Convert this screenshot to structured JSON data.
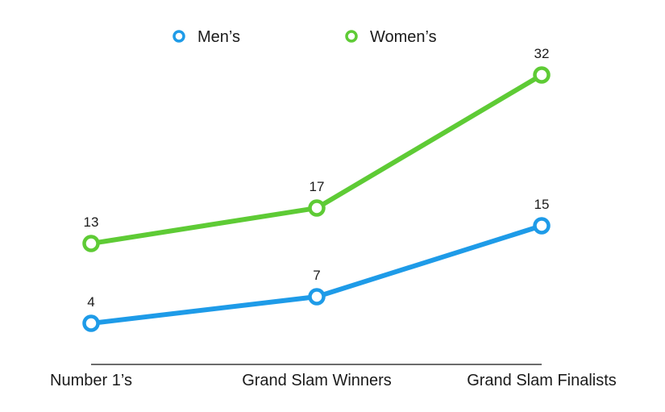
{
  "chart_data": {
    "type": "line",
    "categories": [
      "Number 1’s",
      "Grand Slam Winners",
      "Grand Slam Finalists"
    ],
    "series": [
      {
        "name": "Men’s",
        "values": [
          4,
          7,
          15
        ],
        "color": "#1e9be8"
      },
      {
        "name": "Women’s",
        "values": [
          13,
          17,
          32
        ],
        "color": "#5ecb35"
      }
    ],
    "data_labels": true,
    "legend": "top-center",
    "grid": false
  }
}
